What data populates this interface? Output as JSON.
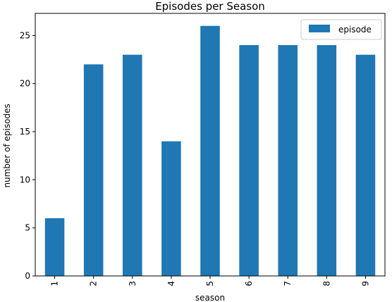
{
  "chart_data": {
    "type": "bar",
    "title": "Episodes per Season",
    "xlabel": "season",
    "ylabel": "number of episodes",
    "categories": [
      "1",
      "2",
      "3",
      "4",
      "5",
      "6",
      "7",
      "8",
      "9"
    ],
    "series": [
      {
        "name": "episode",
        "values": [
          6,
          22,
          23,
          14,
          26,
          24,
          24,
          24,
          23
        ],
        "color": "#1f77b4"
      }
    ],
    "ylim": [
      0,
      27.3
    ],
    "yticks": [
      0,
      5,
      10,
      15,
      20,
      25
    ],
    "grid": false,
    "legend_position": "top-right"
  }
}
